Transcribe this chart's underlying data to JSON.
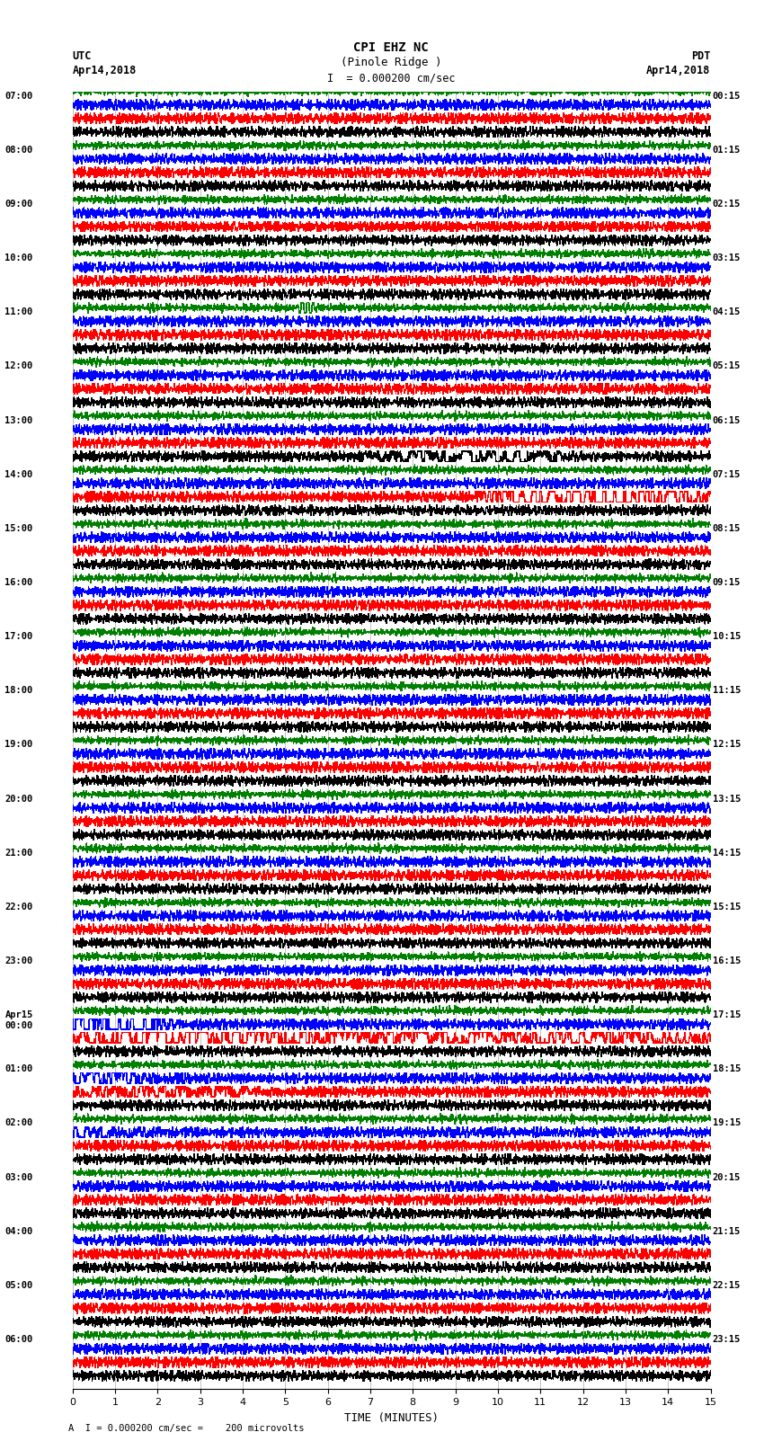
{
  "title_line1": "CPI EHZ NC",
  "title_line2": "(Pinole Ridge )",
  "title_scale": "I  = 0.000200 cm/sec",
  "label_left_top1": "UTC",
  "label_left_top2": "Apr14,2018",
  "label_right_top1": "PDT",
  "label_right_top2": "Apr14,2018",
  "xlabel": "TIME (MINUTES)",
  "footer": "A  I = 0.000200 cm/sec =    200 microvolts",
  "utc_labels": [
    "07:00",
    "08:00",
    "09:00",
    "10:00",
    "11:00",
    "12:00",
    "13:00",
    "14:00",
    "15:00",
    "16:00",
    "17:00",
    "18:00",
    "19:00",
    "20:00",
    "21:00",
    "22:00",
    "23:00",
    "Apr15\n00:00",
    "01:00",
    "02:00",
    "03:00",
    "04:00",
    "05:00",
    "06:00"
  ],
  "pdt_labels": [
    "00:15",
    "01:15",
    "02:15",
    "03:15",
    "04:15",
    "05:15",
    "06:15",
    "07:15",
    "08:15",
    "09:15",
    "10:15",
    "11:15",
    "12:15",
    "13:15",
    "14:15",
    "15:15",
    "16:15",
    "17:15",
    "18:15",
    "19:15",
    "20:15",
    "21:15",
    "22:15",
    "23:15"
  ],
  "n_rows": 24,
  "traces_per_row": 4,
  "trace_colors": [
    "black",
    "red",
    "blue",
    "green"
  ],
  "bg_color": "white",
  "grid_color": "#aaaaaa",
  "xmin": 0,
  "xmax": 15,
  "xticks": [
    0,
    1,
    2,
    3,
    4,
    5,
    6,
    7,
    8,
    9,
    10,
    11,
    12,
    13,
    14,
    15
  ]
}
